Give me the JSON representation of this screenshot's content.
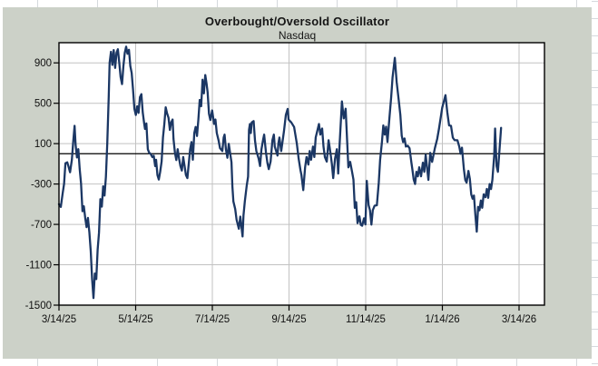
{
  "chart": {
    "title": "Overbought/Oversold Oscillator",
    "subtitle": "Nasdaq"
  },
  "colors": {
    "series": "#1b3764",
    "chart_background": "#ccd1c8",
    "plot_background": "#ffffff",
    "gridline": "#c2c2c2",
    "axis": "#000000",
    "zero_line": "#000000",
    "cell_gridline": "#d5d9dd",
    "label_text": "#111111"
  },
  "chart_data": {
    "type": "line",
    "title": "Overbought/Oversold Oscillator",
    "subtitle": "Nasdaq",
    "legend": "none",
    "grid": true,
    "x_ticks": [
      "3/14/25",
      "5/14/25",
      "7/14/25",
      "9/14/25",
      "11/14/25",
      "1/14/26",
      "3/14/26"
    ],
    "x_range": [
      "3/14/25",
      "3/14/26"
    ],
    "y_ticks": [
      900,
      500,
      100,
      -300,
      -700,
      -1100,
      -1500
    ],
    "ylim": [
      -1500,
      1100
    ],
    "baseline": 0,
    "series": [
      {
        "name": "Nasdaq",
        "color": "#1b3764",
        "x_unit": "fraction of 3/14/25-3/14/26 axis span",
        "points": [
          [
            0.0,
            -500
          ],
          [
            0.004,
            -527
          ],
          [
            0.008,
            -390
          ],
          [
            0.011,
            -300
          ],
          [
            0.014,
            -95
          ],
          [
            0.018,
            -85
          ],
          [
            0.021,
            -130
          ],
          [
            0.024,
            -184
          ],
          [
            0.028,
            -60
          ],
          [
            0.031,
            120
          ],
          [
            0.034,
            277
          ],
          [
            0.036,
            90
          ],
          [
            0.039,
            -37
          ],
          [
            0.042,
            46
          ],
          [
            0.045,
            -150
          ],
          [
            0.048,
            -294
          ],
          [
            0.051,
            -570
          ],
          [
            0.054,
            -520
          ],
          [
            0.057,
            -635
          ],
          [
            0.06,
            -727
          ],
          [
            0.063,
            -635
          ],
          [
            0.066,
            -780
          ],
          [
            0.069,
            -966
          ],
          [
            0.072,
            -1242
          ],
          [
            0.075,
            -1430
          ],
          [
            0.078,
            -1187
          ],
          [
            0.081,
            -1242
          ],
          [
            0.084,
            -950
          ],
          [
            0.087,
            -782
          ],
          [
            0.09,
            -450
          ],
          [
            0.093,
            -524
          ],
          [
            0.096,
            -322
          ],
          [
            0.099,
            -414
          ],
          [
            0.102,
            -230
          ],
          [
            0.105,
            100
          ],
          [
            0.108,
            560
          ],
          [
            0.11,
            900
          ],
          [
            0.113,
            1010
          ],
          [
            0.116,
            880
          ],
          [
            0.119,
            1027
          ],
          [
            0.122,
            850
          ],
          [
            0.125,
            1000
          ],
          [
            0.128,
            1035
          ],
          [
            0.131,
            905
          ],
          [
            0.134,
            760
          ],
          [
            0.137,
            690
          ],
          [
            0.14,
            870
          ],
          [
            0.143,
            1000
          ],
          [
            0.146,
            1060
          ],
          [
            0.149,
            990
          ],
          [
            0.152,
            1030
          ],
          [
            0.155,
            870
          ],
          [
            0.158,
            800
          ],
          [
            0.161,
            637
          ],
          [
            0.164,
            446
          ],
          [
            0.167,
            384
          ],
          [
            0.17,
            470
          ],
          [
            0.173,
            405
          ],
          [
            0.176,
            560
          ],
          [
            0.179,
            590
          ],
          [
            0.182,
            410
          ],
          [
            0.185,
            306
          ],
          [
            0.187,
            245
          ],
          [
            0.19,
            300
          ],
          [
            0.193,
            45
          ],
          [
            0.196,
            10
          ],
          [
            0.199,
            0
          ],
          [
            0.203,
            -33
          ],
          [
            0.206,
            -20
          ],
          [
            0.209,
            -122
          ],
          [
            0.211,
            -60
          ],
          [
            0.214,
            -212
          ],
          [
            0.217,
            -256
          ],
          [
            0.22,
            -180
          ],
          [
            0.223,
            -78
          ],
          [
            0.226,
            161
          ],
          [
            0.229,
            295
          ],
          [
            0.232,
            460
          ],
          [
            0.235,
            400
          ],
          [
            0.238,
            357
          ],
          [
            0.241,
            235
          ],
          [
            0.244,
            313
          ],
          [
            0.247,
            339
          ],
          [
            0.249,
            146
          ],
          [
            0.252,
            9
          ],
          [
            0.255,
            -62
          ],
          [
            0.258,
            45
          ],
          [
            0.261,
            -45
          ],
          [
            0.264,
            -122
          ],
          [
            0.267,
            -167
          ],
          [
            0.27,
            -33
          ],
          [
            0.273,
            -122
          ],
          [
            0.276,
            -212
          ],
          [
            0.279,
            -241
          ],
          [
            0.282,
            -100
          ],
          [
            0.285,
            42
          ],
          [
            0.288,
            116
          ],
          [
            0.291,
            -60
          ],
          [
            0.294,
            205
          ],
          [
            0.297,
            265
          ],
          [
            0.3,
            176
          ],
          [
            0.303,
            339
          ],
          [
            0.306,
            533
          ],
          [
            0.309,
            470
          ],
          [
            0.312,
            733
          ],
          [
            0.315,
            598
          ],
          [
            0.318,
            780
          ],
          [
            0.321,
            690
          ],
          [
            0.323,
            610
          ],
          [
            0.326,
            396
          ],
          [
            0.329,
            334
          ],
          [
            0.333,
            429
          ],
          [
            0.337,
            295
          ],
          [
            0.34,
            339
          ],
          [
            0.343,
            205
          ],
          [
            0.347,
            131
          ],
          [
            0.35,
            56
          ],
          [
            0.355,
            27
          ],
          [
            0.358,
            161
          ],
          [
            0.36,
            190
          ],
          [
            0.363,
            40
          ],
          [
            0.366,
            -40
          ],
          [
            0.369,
            98
          ],
          [
            0.375,
            -85
          ],
          [
            0.377,
            -324
          ],
          [
            0.379,
            -473
          ],
          [
            0.383,
            -548
          ],
          [
            0.386,
            -653
          ],
          [
            0.391,
            -743
          ],
          [
            0.394,
            -623
          ],
          [
            0.399,
            -820
          ],
          [
            0.401,
            -613
          ],
          [
            0.404,
            -473
          ],
          [
            0.408,
            -315
          ],
          [
            0.411,
            -226
          ],
          [
            0.413,
            235
          ],
          [
            0.415,
            295
          ],
          [
            0.417,
            205
          ],
          [
            0.419,
            310
          ],
          [
            0.423,
            324
          ],
          [
            0.426,
            131
          ],
          [
            0.429,
            27
          ],
          [
            0.434,
            -47
          ],
          [
            0.437,
            -122
          ],
          [
            0.44,
            42
          ],
          [
            0.444,
            146
          ],
          [
            0.446,
            190
          ],
          [
            0.45,
            12
          ],
          [
            0.453,
            -92
          ],
          [
            0.456,
            -152
          ],
          [
            0.46,
            -78
          ],
          [
            0.464,
            134
          ],
          [
            0.467,
            190
          ],
          [
            0.469,
            71
          ],
          [
            0.475,
            -18
          ],
          [
            0.477,
            101
          ],
          [
            0.479,
            161
          ],
          [
            0.483,
            27
          ],
          [
            0.489,
            221
          ],
          [
            0.493,
            384
          ],
          [
            0.497,
            444
          ],
          [
            0.499,
            339
          ],
          [
            0.505,
            310
          ],
          [
            0.511,
            265
          ],
          [
            0.517,
            101
          ],
          [
            0.521,
            -48
          ],
          [
            0.525,
            -167
          ],
          [
            0.527,
            -212
          ],
          [
            0.531,
            -360
          ],
          [
            0.535,
            -137
          ],
          [
            0.538,
            -33
          ],
          [
            0.542,
            -107
          ],
          [
            0.545,
            27
          ],
          [
            0.548,
            -60
          ],
          [
            0.552,
            71
          ],
          [
            0.555,
            -33
          ],
          [
            0.558,
            161
          ],
          [
            0.562,
            235
          ],
          [
            0.565,
            295
          ],
          [
            0.568,
            190
          ],
          [
            0.572,
            250
          ],
          [
            0.575,
            71
          ],
          [
            0.578,
            -33
          ],
          [
            0.582,
            -78
          ],
          [
            0.586,
            134
          ],
          [
            0.59,
            12
          ],
          [
            0.593,
            -100
          ],
          [
            0.596,
            -241
          ],
          [
            0.6,
            -50
          ],
          [
            0.604,
            45
          ],
          [
            0.607,
            -196
          ],
          [
            0.61,
            100
          ],
          [
            0.615,
            518
          ],
          [
            0.619,
            350
          ],
          [
            0.623,
            446
          ],
          [
            0.629,
            -134
          ],
          [
            0.633,
            -80
          ],
          [
            0.637,
            -180
          ],
          [
            0.64,
            -256
          ],
          [
            0.643,
            -536
          ],
          [
            0.646,
            -480
          ],
          [
            0.649,
            -688
          ],
          [
            0.653,
            -620
          ],
          [
            0.656,
            -705
          ],
          [
            0.659,
            -714
          ],
          [
            0.663,
            -640
          ],
          [
            0.666,
            -700
          ],
          [
            0.669,
            -268
          ],
          [
            0.673,
            -509
          ],
          [
            0.676,
            -560
          ],
          [
            0.679,
            -702
          ],
          [
            0.682,
            -560
          ],
          [
            0.686,
            -515
          ],
          [
            0.691,
            -510
          ],
          [
            0.695,
            -286
          ],
          [
            0.698,
            -60
          ],
          [
            0.702,
            116
          ],
          [
            0.705,
            280
          ],
          [
            0.708,
            190
          ],
          [
            0.711,
            268
          ],
          [
            0.714,
            116
          ],
          [
            0.718,
            339
          ],
          [
            0.722,
            563
          ],
          [
            0.725,
            756
          ],
          [
            0.73,
            950
          ],
          [
            0.734,
            712
          ],
          [
            0.738,
            547
          ],
          [
            0.742,
            384
          ],
          [
            0.745,
            179
          ],
          [
            0.748,
            116
          ],
          [
            0.751,
            152
          ],
          [
            0.754,
            71
          ],
          [
            0.758,
            80
          ],
          [
            0.762,
            55
          ],
          [
            0.766,
            -90
          ],
          [
            0.768,
            -152
          ],
          [
            0.771,
            -256
          ],
          [
            0.774,
            -300
          ],
          [
            0.777,
            -179
          ],
          [
            0.78,
            -223
          ],
          [
            0.783,
            -134
          ],
          [
            0.787,
            -223
          ],
          [
            0.791,
            -89
          ],
          [
            0.794,
            -179
          ],
          [
            0.797,
            -10
          ],
          [
            0.803,
            -259
          ],
          [
            0.807,
            9
          ],
          [
            0.811,
            -80
          ],
          [
            0.817,
            54
          ],
          [
            0.822,
            146
          ],
          [
            0.826,
            250
          ],
          [
            0.83,
            366
          ],
          [
            0.833,
            455
          ],
          [
            0.84,
            580
          ],
          [
            0.844,
            413
          ],
          [
            0.848,
            280
          ],
          [
            0.852,
            277
          ],
          [
            0.856,
            160
          ],
          [
            0.86,
            134
          ],
          [
            0.866,
            134
          ],
          [
            0.87,
            71
          ],
          [
            0.873,
            0
          ],
          [
            0.876,
            60
          ],
          [
            0.88,
            -152
          ],
          [
            0.883,
            -259
          ],
          [
            0.886,
            -286
          ],
          [
            0.89,
            -170
          ],
          [
            0.893,
            -250
          ],
          [
            0.896,
            -402
          ],
          [
            0.899,
            -446
          ],
          [
            0.902,
            -414
          ],
          [
            0.905,
            -600
          ],
          [
            0.908,
            -772
          ],
          [
            0.911,
            -527
          ],
          [
            0.914,
            -560
          ],
          [
            0.917,
            -464
          ],
          [
            0.92,
            -536
          ],
          [
            0.923,
            -402
          ],
          [
            0.927,
            -430
          ],
          [
            0.93,
            -348
          ],
          [
            0.933,
            -437
          ],
          [
            0.936,
            -300
          ],
          [
            0.939,
            -350
          ],
          [
            0.942,
            -259
          ],
          [
            0.946,
            -18
          ],
          [
            0.948,
            250
          ],
          [
            0.951,
            -122
          ],
          [
            0.954,
            -179
          ],
          [
            0.958,
            71
          ],
          [
            0.961,
            256
          ]
        ]
      }
    ]
  }
}
